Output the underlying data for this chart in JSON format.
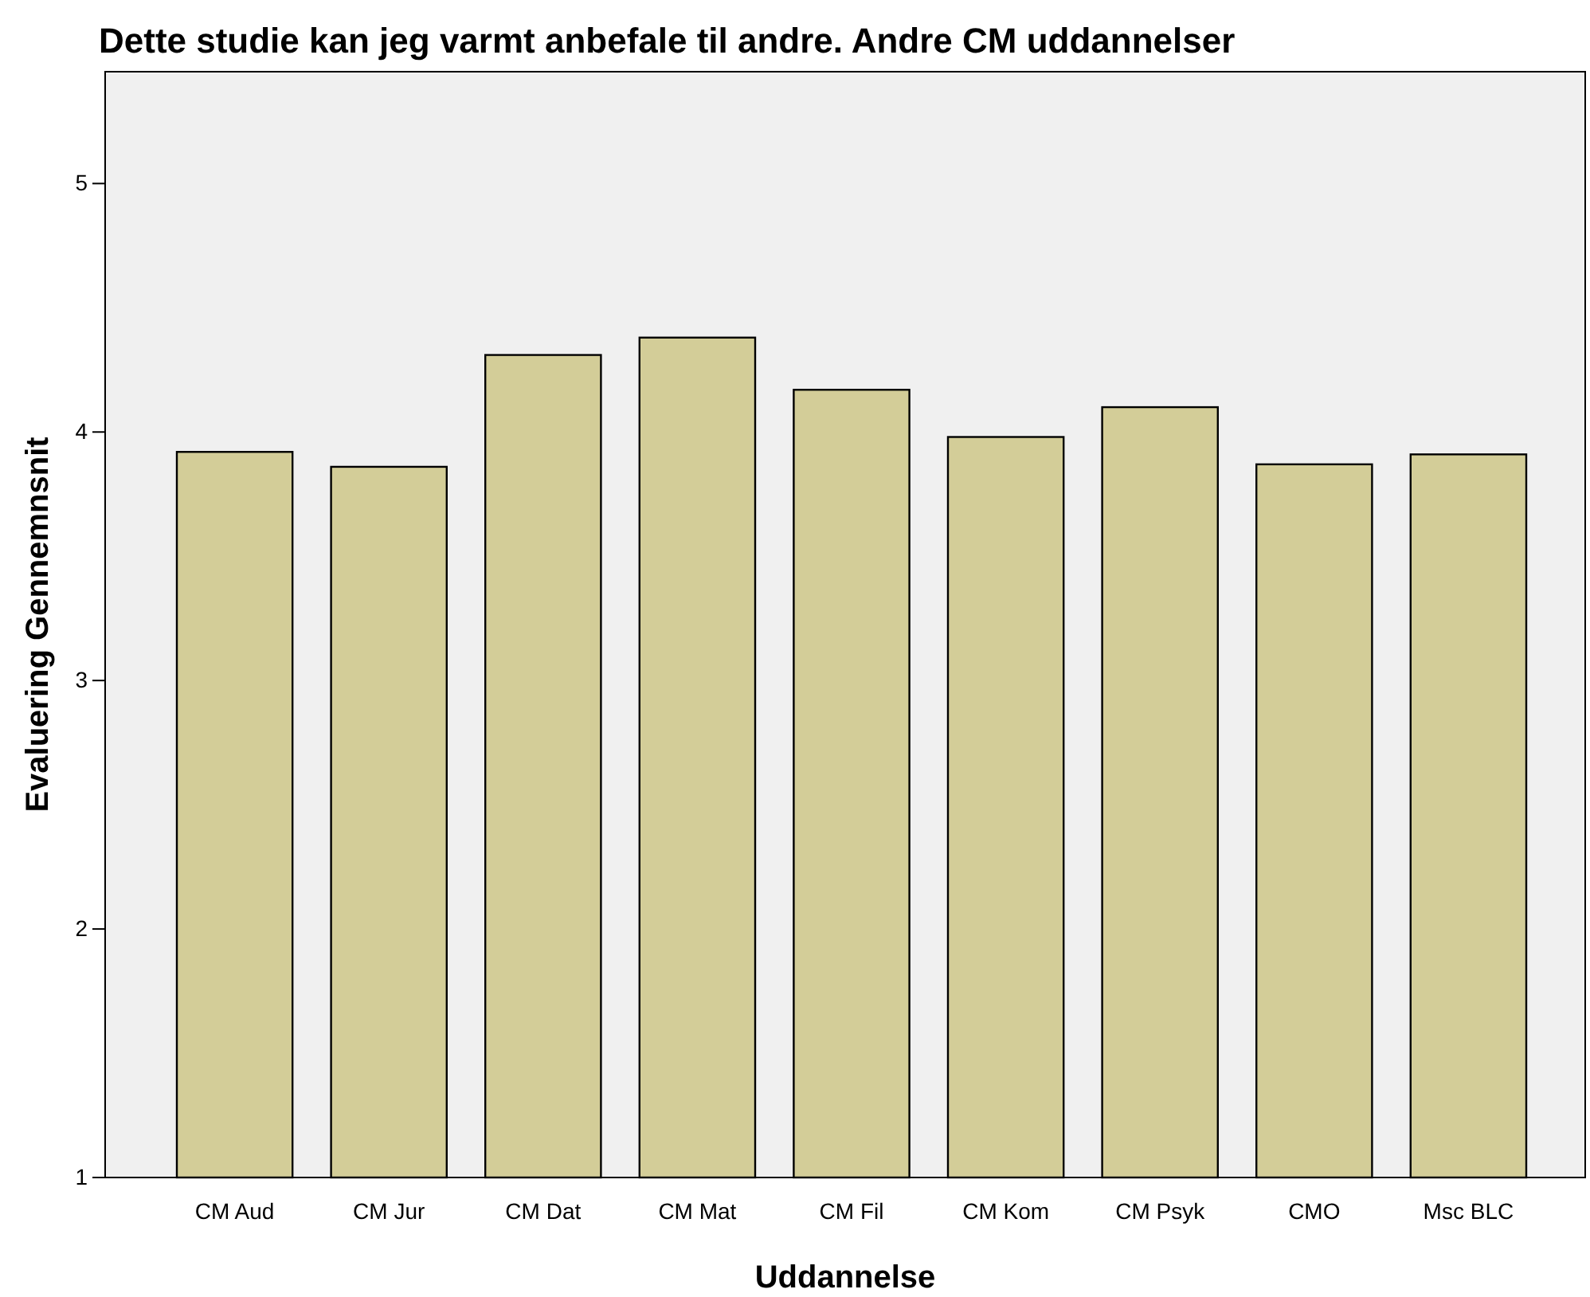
{
  "chart_data": {
    "type": "bar",
    "title": "Dette studie kan jeg varmt anbefale til andre. Andre CM uddannelser",
    "xlabel": "Uddannelse",
    "ylabel": "Evaluering Gennemnsnit",
    "categories": [
      "CM Aud",
      "CM Jur",
      "CM Dat",
      "CM Mat",
      "CM Fil",
      "CM Kom",
      "CM Psyk",
      "CMO",
      "Msc BLC"
    ],
    "values": [
      3.92,
      3.86,
      4.31,
      4.38,
      4.17,
      3.98,
      4.1,
      3.87,
      3.91
    ],
    "color": "#d3cd98",
    "ylim": [
      1,
      5.45
    ],
    "yticks": [
      1,
      2,
      3,
      4,
      5
    ],
    "grid": false
  }
}
